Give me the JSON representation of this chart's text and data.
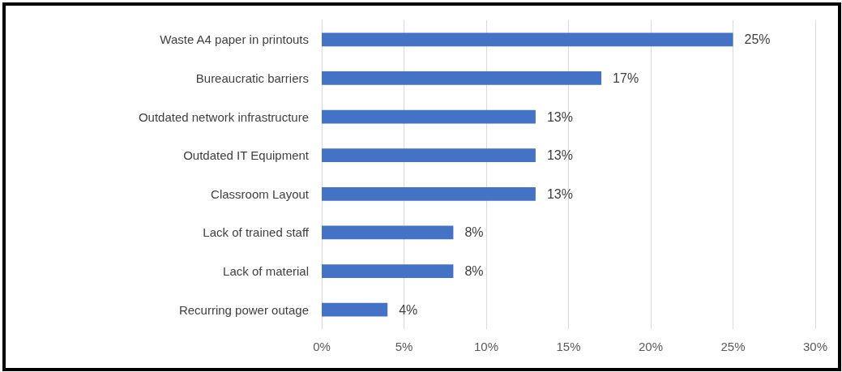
{
  "chart_data": {
    "type": "bar",
    "orientation": "horizontal",
    "categories": [
      "Waste A4 paper in printouts",
      "Bureaucratic barriers",
      "Outdated network infrastructure",
      "Outdated IT Equipment",
      "Classroom Layout",
      "Lack of trained staff",
      "Lack of material",
      "Recurring power outage"
    ],
    "values": [
      25,
      17,
      13,
      13,
      13,
      8,
      8,
      4
    ],
    "value_labels": [
      "25%",
      "17%",
      "13%",
      "13%",
      "13%",
      "8%",
      "8%",
      "4%"
    ],
    "color": "#4472c4",
    "xlim": [
      0,
      30
    ],
    "xticks": [
      {
        "value": 0,
        "label": "0%"
      },
      {
        "value": 5,
        "label": "5%"
      },
      {
        "value": 10,
        "label": "10%"
      },
      {
        "value": 15,
        "label": "15%"
      },
      {
        "value": 20,
        "label": "20%"
      },
      {
        "value": 25,
        "label": "25%"
      },
      {
        "value": 30,
        "label": "30%"
      }
    ],
    "grid": "x"
  }
}
